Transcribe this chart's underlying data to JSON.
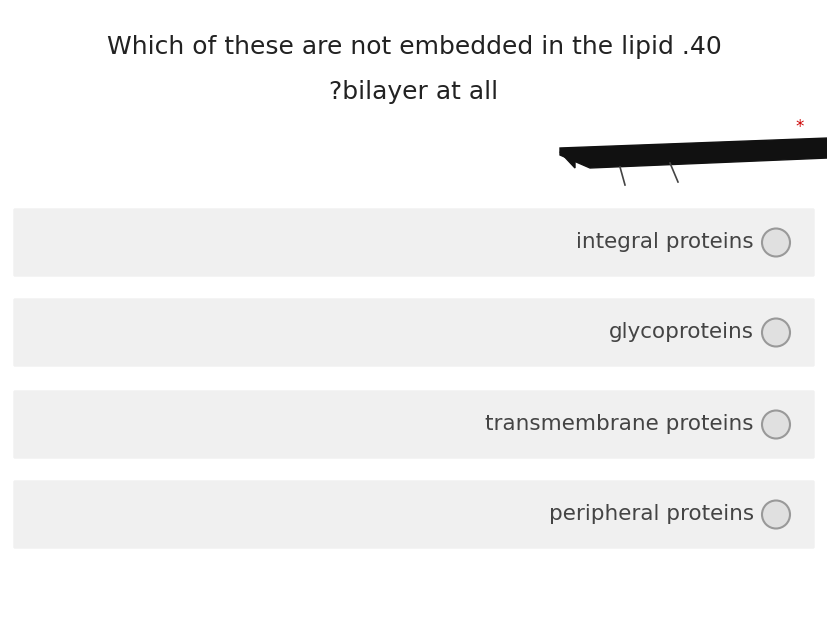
{
  "title_line1": "Which of these are not embedded in the lipid .40",
  "title_line2": "?bilayer at all",
  "asterisk": "*",
  "options": [
    "integral proteins",
    "glycoproteins",
    "transmembrane proteins",
    "peripheral proteins"
  ],
  "bg_color": "#ffffff",
  "option_bg_color": "#f0f0f0",
  "title_color": "#222222",
  "option_text_color": "#444444",
  "asterisk_color": "#cc0000",
  "circle_edge_color": "#999999",
  "circle_face_color": "#e0e0e0",
  "title_fontsize": 18,
  "option_fontsize": 15.5
}
